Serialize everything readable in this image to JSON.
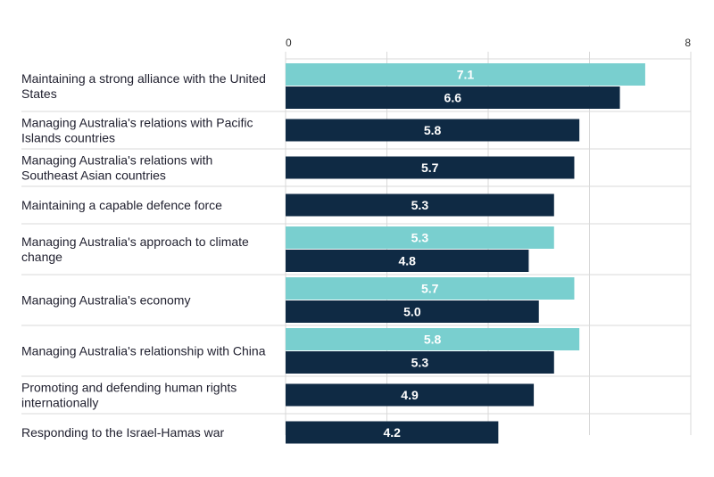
{
  "chart_data": {
    "type": "bar",
    "orientation": "horizontal",
    "title": "",
    "xlabel": "",
    "ylabel": "",
    "xlim": [
      0,
      8
    ],
    "x_ticks_labeled": [
      0,
      8
    ],
    "x_ticks": [
      0,
      2,
      4,
      6,
      8
    ],
    "grid": true,
    "colors": {
      "light": "#79cfcf",
      "dark": "#0f2a44"
    },
    "categories": [
      {
        "label": "Maintaining a strong alliance with the United States",
        "lines": [
          "Maintaining a strong alliance with the United",
          "States"
        ],
        "bars": [
          {
            "value": 7.1,
            "label": "7.1",
            "color": "light"
          },
          {
            "value": 6.6,
            "label": "6.6",
            "color": "dark"
          }
        ]
      },
      {
        "label": "Managing Australia's relations with Pacific Islands countries",
        "lines": [
          "Managing Australia's relations with Pacific",
          "Islands countries"
        ],
        "bars": [
          {
            "value": 5.8,
            "label": "5.8",
            "color": "dark"
          }
        ]
      },
      {
        "label": "Managing Australia's relations with Southeast Asian countries",
        "lines": [
          "Managing Australia's relations with",
          "Southeast Asian countries"
        ],
        "bars": [
          {
            "value": 5.7,
            "label": "5.7",
            "color": "dark"
          }
        ]
      },
      {
        "label": "Maintaining a capable defence force",
        "lines": [
          "Maintaining a capable defence force"
        ],
        "bars": [
          {
            "value": 5.3,
            "label": "5.3",
            "color": "dark"
          }
        ]
      },
      {
        "label": "Managing Australia's approach to climate change",
        "lines": [
          "Managing Australia's approach to climate",
          "change"
        ],
        "bars": [
          {
            "value": 5.3,
            "label": "5.3",
            "color": "light"
          },
          {
            "value": 4.8,
            "label": "4.8",
            "color": "dark"
          }
        ]
      },
      {
        "label": "Managing Australia's economy",
        "lines": [
          "Managing Australia's economy"
        ],
        "bars": [
          {
            "value": 5.7,
            "label": "5.7",
            "color": "light"
          },
          {
            "value": 5.0,
            "label": "5.0",
            "color": "dark"
          }
        ]
      },
      {
        "label": "Managing Australia's relationship with China",
        "lines": [
          "Managing Australia's relationship with China"
        ],
        "bars": [
          {
            "value": 5.8,
            "label": "5.8",
            "color": "light"
          },
          {
            "value": 5.3,
            "label": "5.3",
            "color": "dark"
          }
        ]
      },
      {
        "label": "Promoting and defending human rights internationally",
        "lines": [
          "Promoting and defending human rights",
          "internationally"
        ],
        "bars": [
          {
            "value": 4.9,
            "label": "4.9",
            "color": "dark"
          }
        ]
      },
      {
        "label": "Responding to the Israel-Hamas war",
        "lines": [
          "Responding to the Israel-Hamas war"
        ],
        "bars": [
          {
            "value": 4.2,
            "label": "4.2",
            "color": "dark"
          }
        ]
      }
    ]
  }
}
